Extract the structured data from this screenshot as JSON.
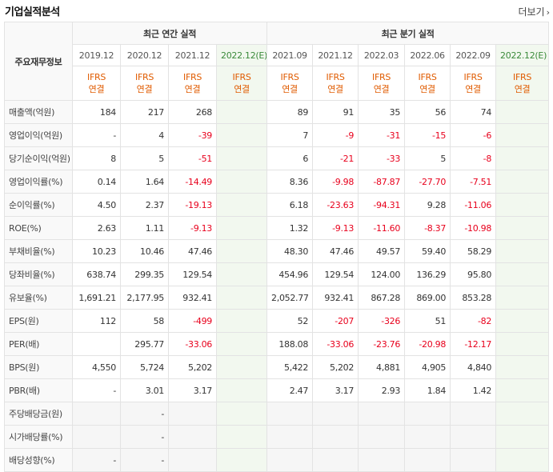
{
  "section_title": "기업실적분석",
  "more_label": "더보기",
  "row_header_title": "주요재무정보",
  "group_annual": "최근 연간 실적",
  "group_quarter": "최근 분기 실적",
  "annual_periods": [
    "2019.12",
    "2020.12",
    "2021.12",
    "2022.12(E)"
  ],
  "quarter_periods": [
    "2021.09",
    "2021.12",
    "2022.03",
    "2022.06",
    "2022.09",
    "2022.12(E)"
  ],
  "basis_line1": "IFRS",
  "basis_line2": "연결",
  "rows": [
    {
      "label": "매출액(억원)",
      "annual": [
        "184",
        "217",
        "268",
        ""
      ],
      "quarter": [
        "89",
        "91",
        "35",
        "56",
        "74",
        ""
      ]
    },
    {
      "label": "영업이익(억원)",
      "annual": [
        "-",
        "4",
        "-39",
        ""
      ],
      "quarter": [
        "7",
        "-9",
        "-31",
        "-15",
        "-6",
        ""
      ]
    },
    {
      "label": "당기순이익(억원)",
      "annual": [
        "8",
        "5",
        "-51",
        ""
      ],
      "quarter": [
        "6",
        "-21",
        "-33",
        "5",
        "-8",
        ""
      ]
    },
    {
      "label": "영업이익률(%)",
      "annual": [
        "0.14",
        "1.64",
        "-14.49",
        ""
      ],
      "quarter": [
        "8.36",
        "-9.98",
        "-87.87",
        "-27.70",
        "-7.51",
        ""
      ]
    },
    {
      "label": "순이익률(%)",
      "annual": [
        "4.50",
        "2.37",
        "-19.13",
        ""
      ],
      "quarter": [
        "6.18",
        "-23.63",
        "-94.31",
        "9.28",
        "-11.06",
        ""
      ]
    },
    {
      "label": "ROE(%)",
      "annual": [
        "2.63",
        "1.11",
        "-9.13",
        ""
      ],
      "quarter": [
        "1.32",
        "-9.13",
        "-11.60",
        "-8.37",
        "-10.98",
        ""
      ]
    },
    {
      "label": "부채비율(%)",
      "annual": [
        "10.23",
        "10.46",
        "47.46",
        ""
      ],
      "quarter": [
        "48.30",
        "47.46",
        "49.57",
        "59.40",
        "58.29",
        ""
      ]
    },
    {
      "label": "당좌비율(%)",
      "annual": [
        "638.74",
        "299.35",
        "129.54",
        ""
      ],
      "quarter": [
        "454.96",
        "129.54",
        "124.00",
        "136.29",
        "95.80",
        ""
      ]
    },
    {
      "label": "유보율(%)",
      "annual": [
        "1,691.21",
        "2,177.95",
        "932.41",
        ""
      ],
      "quarter": [
        "2,052.77",
        "932.41",
        "867.28",
        "869.00",
        "853.28",
        ""
      ]
    },
    {
      "label": "EPS(원)",
      "annual": [
        "112",
        "58",
        "-499",
        ""
      ],
      "quarter": [
        "52",
        "-207",
        "-326",
        "51",
        "-82",
        ""
      ]
    },
    {
      "label": "PER(배)",
      "annual": [
        "",
        "295.77",
        "-33.06",
        ""
      ],
      "quarter": [
        "188.08",
        "-33.06",
        "-23.76",
        "-20.98",
        "-12.17",
        ""
      ]
    },
    {
      "label": "BPS(원)",
      "annual": [
        "4,550",
        "5,724",
        "5,202",
        ""
      ],
      "quarter": [
        "5,422",
        "5,202",
        "4,881",
        "4,905",
        "4,840",
        ""
      ]
    },
    {
      "label": "PBR(배)",
      "annual": [
        "-",
        "3.01",
        "3.17",
        ""
      ],
      "quarter": [
        "2.47",
        "3.17",
        "2.93",
        "1.84",
        "1.42",
        ""
      ]
    },
    {
      "label": "주당배당금(원)",
      "annual": [
        "",
        "-",
        "",
        ""
      ],
      "quarter": [
        "",
        "",
        "",
        "",
        "",
        ""
      ]
    },
    {
      "label": "시가배당률(%)",
      "annual": [
        "",
        "-",
        "",
        ""
      ],
      "quarter": [
        "",
        "",
        "",
        "",
        "",
        ""
      ]
    },
    {
      "label": "배당성향(%)",
      "annual": [
        "-",
        "-",
        "",
        ""
      ],
      "quarter": [
        "",
        "",
        "",
        "",
        "",
        ""
      ]
    }
  ],
  "colors": {
    "negative": "#e8001c",
    "ifrs": "#e05b00",
    "estimate_bg": "#f2f8ef"
  }
}
